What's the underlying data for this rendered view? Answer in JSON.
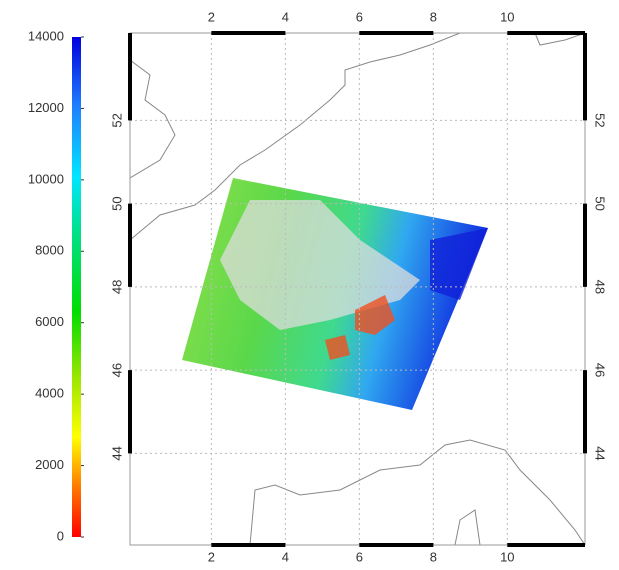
{
  "colorbar": {
    "ticks": [
      0,
      2000,
      4000,
      6000,
      8000,
      10000,
      12000,
      14000
    ],
    "lim": [
      0,
      14000
    ]
  },
  "map": {
    "xticks": [
      2,
      4,
      6,
      8,
      10
    ],
    "yticks": [
      44,
      46,
      48,
      50,
      52
    ],
    "xlim": [
      -0.2,
      12.1
    ],
    "ylim": [
      41.8,
      54.1
    ],
    "grid": true
  }
}
